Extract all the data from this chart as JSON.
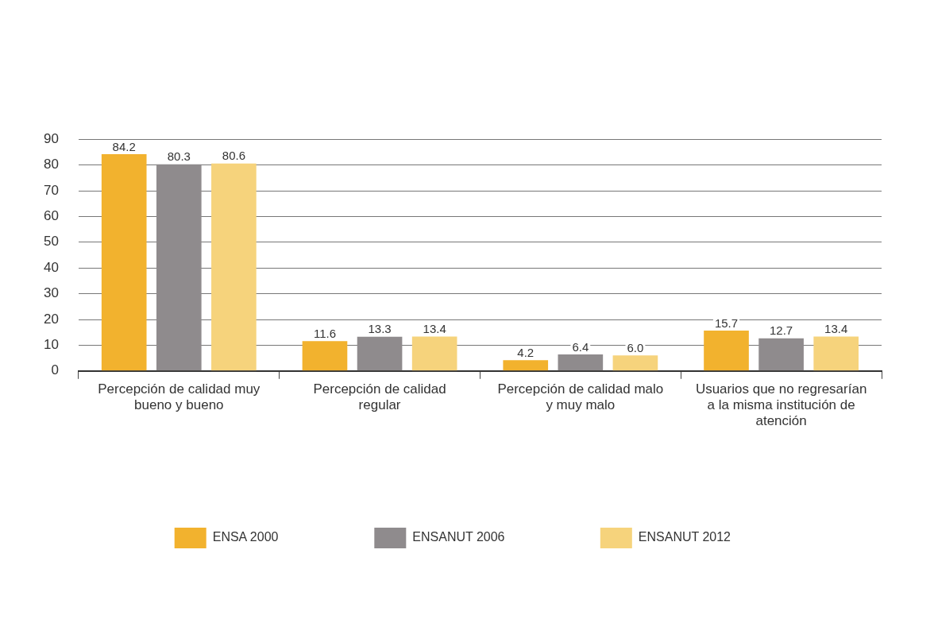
{
  "chart_data": {
    "type": "bar",
    "categories": [
      "Percepción de calidad muy bueno y bueno",
      "Percepción de calidad regular",
      "Percepción de calidad malo y muy malo",
      "Usuarios que no regresarían a la misma institución de atención"
    ],
    "series": [
      {
        "name": "ENSA 2000",
        "color": "#f2b22e",
        "values": [
          84.2,
          11.6,
          4.2,
          15.7
        ],
        "value_labels": [
          "84.2",
          "11.6",
          "4.2",
          "15.7"
        ]
      },
      {
        "name": "ENSANUT 2006",
        "color": "#8f8b8d",
        "values": [
          80.3,
          13.3,
          6.4,
          12.7
        ],
        "value_labels": [
          "80.3",
          "13.3",
          "6.4",
          "12.7"
        ]
      },
      {
        "name": "ENSANUT 2012",
        "color": "#f6d37c",
        "values": [
          80.6,
          13.4,
          6.0,
          13.4
        ],
        "value_labels": [
          "80.6",
          "13.4",
          "6.0",
          "13.4"
        ]
      }
    ],
    "ylim": [
      0,
      90
    ],
    "yticks": [
      0,
      10,
      20,
      30,
      40,
      50,
      60,
      70,
      80,
      90
    ],
    "grid": "y",
    "legend": "bottom"
  }
}
